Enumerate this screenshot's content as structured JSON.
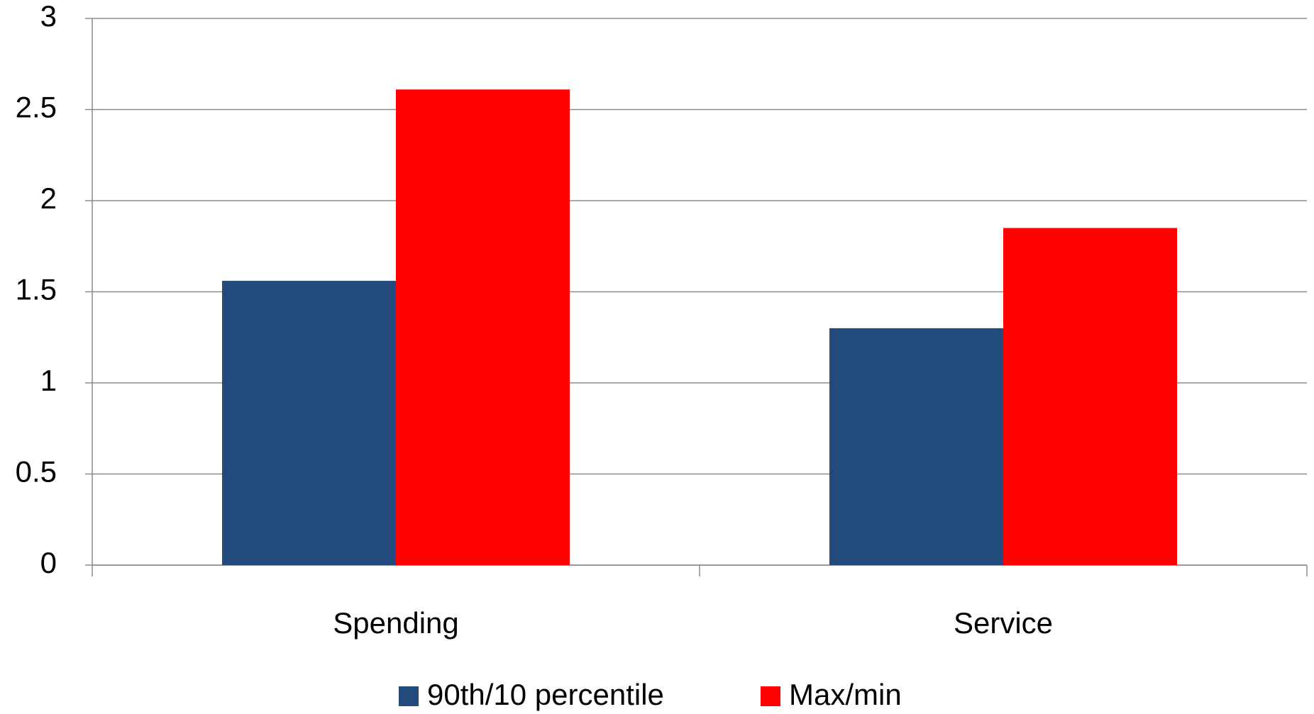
{
  "chart_data": {
    "type": "bar",
    "categories": [
      "Spending",
      "Service"
    ],
    "series": [
      {
        "name": "90th/10 percentile",
        "color": "#224a7c",
        "values": [
          1.56,
          1.3
        ]
      },
      {
        "name": "Max/min",
        "color": "#ff0000",
        "values": [
          2.61,
          1.85
        ]
      }
    ],
    "ylim": [
      0,
      3
    ],
    "yticks": [
      0,
      0.5,
      1,
      1.5,
      2,
      2.5,
      3
    ],
    "grid": true,
    "legend": "bottom"
  }
}
